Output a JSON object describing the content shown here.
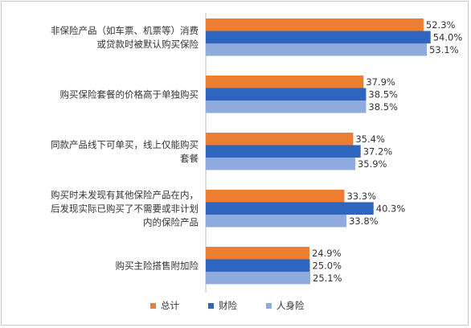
{
  "chart_data": {
    "type": "bar",
    "orientation": "horizontal",
    "categories": [
      [
        "非保险产品（如车票、机票等）消费",
        "或贷款时被默认购买保险"
      ],
      [
        "购买保险套餐的价格高于单独购买"
      ],
      [
        "同款产品线下可单买，线上仅能购买",
        "套餐"
      ],
      [
        "购买时未发现有其他保险产品在内，",
        "后发现实际已购买了不需要或非计划",
        "内的保险产品"
      ],
      [
        "购买主险搭售附加险"
      ]
    ],
    "series": [
      {
        "name": "总计",
        "color": "#ed7d31",
        "values": [
          52.3,
          37.9,
          35.4,
          33.3,
          24.9
        ],
        "labels": [
          "52.3%",
          "37.9%",
          "35.4%",
          "33.3%",
          "24.9%"
        ]
      },
      {
        "name": "财险",
        "color": "#2e65bf",
        "values": [
          54.0,
          38.5,
          37.2,
          40.3,
          25.0
        ],
        "labels": [
          "54.0%",
          "38.5%",
          "37.2%",
          "40.3%",
          "25.0%"
        ]
      },
      {
        "name": "人身险",
        "color": "#8faadc",
        "values": [
          53.1,
          38.5,
          35.9,
          33.8,
          25.1
        ],
        "labels": [
          "53.1%",
          "38.5%",
          "35.9%",
          "33.8%",
          "25.1%"
        ]
      }
    ],
    "xlim": [
      0,
      60
    ],
    "grid": false,
    "legend_position": "bottom"
  }
}
